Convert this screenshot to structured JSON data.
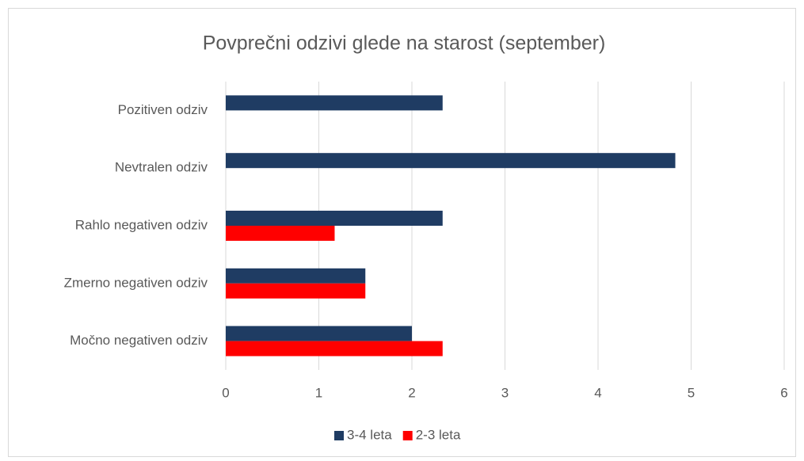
{
  "chart_data": {
    "type": "hbar",
    "title": "Povprečni odzivi glede na starost (september)",
    "categories": [
      "Pozitiven odziv",
      "Nevtralen odziv",
      "Rahlo negativen odziv",
      "Zmerno negativen odziv",
      "Močno negativen odziv"
    ],
    "series": [
      {
        "name": "3-4 leta",
        "color": "#1f3c63",
        "values": [
          2.33,
          4.83,
          2.33,
          1.5,
          2.0
        ]
      },
      {
        "name": "2-3 leta",
        "color": "#ff0000",
        "values": [
          0,
          0,
          1.17,
          1.5,
          2.33
        ]
      }
    ],
    "xlim": [
      0,
      6
    ],
    "xticks": [
      0,
      1,
      2,
      3,
      4,
      5,
      6
    ],
    "grid": true,
    "legend": "bottom"
  }
}
